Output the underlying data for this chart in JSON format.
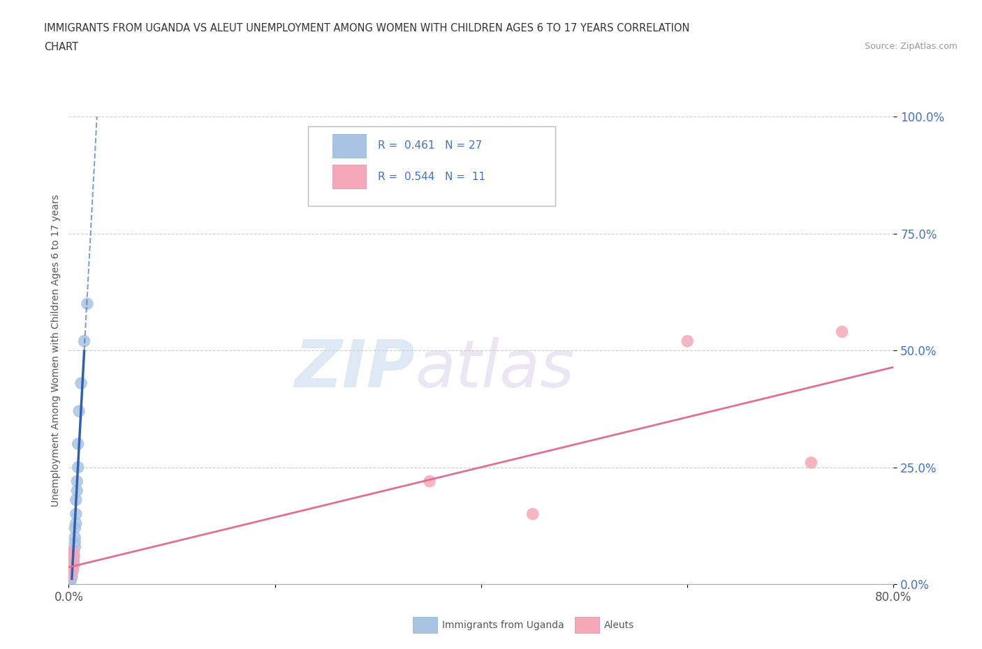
{
  "title_line1": "IMMIGRANTS FROM UGANDA VS ALEUT UNEMPLOYMENT AMONG WOMEN WITH CHILDREN AGES 6 TO 17 YEARS CORRELATION",
  "title_line2": "CHART",
  "source": "Source: ZipAtlas.com",
  "xlabel": "Immigrants from Uganda",
  "ylabel": "Unemployment Among Women with Children Ages 6 to 17 years",
  "xlim": [
    0.0,
    0.8
  ],
  "ylim": [
    0.0,
    1.0
  ],
  "xticks": [
    0.0,
    0.2,
    0.4,
    0.6,
    0.8
  ],
  "yticks": [
    0.0,
    0.25,
    0.5,
    0.75,
    1.0
  ],
  "xticklabels": [
    "0.0%",
    "",
    "",
    "",
    "80.0%"
  ],
  "yticklabels": [
    "0.0%",
    "25.0%",
    "50.0%",
    "75.0%",
    "100.0%"
  ],
  "uganda_x": [
    0.001,
    0.002,
    0.002,
    0.003,
    0.003,
    0.003,
    0.004,
    0.004,
    0.004,
    0.005,
    0.005,
    0.005,
    0.006,
    0.006,
    0.006,
    0.006,
    0.007,
    0.007,
    0.007,
    0.008,
    0.008,
    0.009,
    0.009,
    0.01,
    0.012,
    0.015,
    0.018
  ],
  "uganda_y": [
    0.005,
    0.008,
    0.01,
    0.015,
    0.02,
    0.03,
    0.03,
    0.04,
    0.05,
    0.05,
    0.06,
    0.07,
    0.08,
    0.09,
    0.1,
    0.12,
    0.13,
    0.15,
    0.18,
    0.2,
    0.22,
    0.25,
    0.3,
    0.37,
    0.43,
    0.52,
    0.6
  ],
  "aleut_x": [
    0.002,
    0.003,
    0.004,
    0.004,
    0.005,
    0.005,
    0.35,
    0.45,
    0.6,
    0.72,
    0.75
  ],
  "aleut_y": [
    0.02,
    0.035,
    0.03,
    0.07,
    0.04,
    0.06,
    0.22,
    0.15,
    0.52,
    0.26,
    0.54
  ],
  "uganda_color": "#a8c4e0",
  "aleut_color": "#f4a8b8",
  "uganda_line_color": "#3060b0",
  "aleut_line_color": "#e07090",
  "R_uganda": 0.461,
  "N_uganda": 27,
  "R_aleut": 0.544,
  "N_aleut": 11,
  "watermark_zip": "ZIP",
  "watermark_atlas": "atlas",
  "background_color": "#ffffff",
  "grid_color": "#cccccc",
  "ytick_color": "#4472c4",
  "legend_text_color": "#333333",
  "legend_r_color": "#4472c4",
  "legend_n_color": "#4472c4"
}
